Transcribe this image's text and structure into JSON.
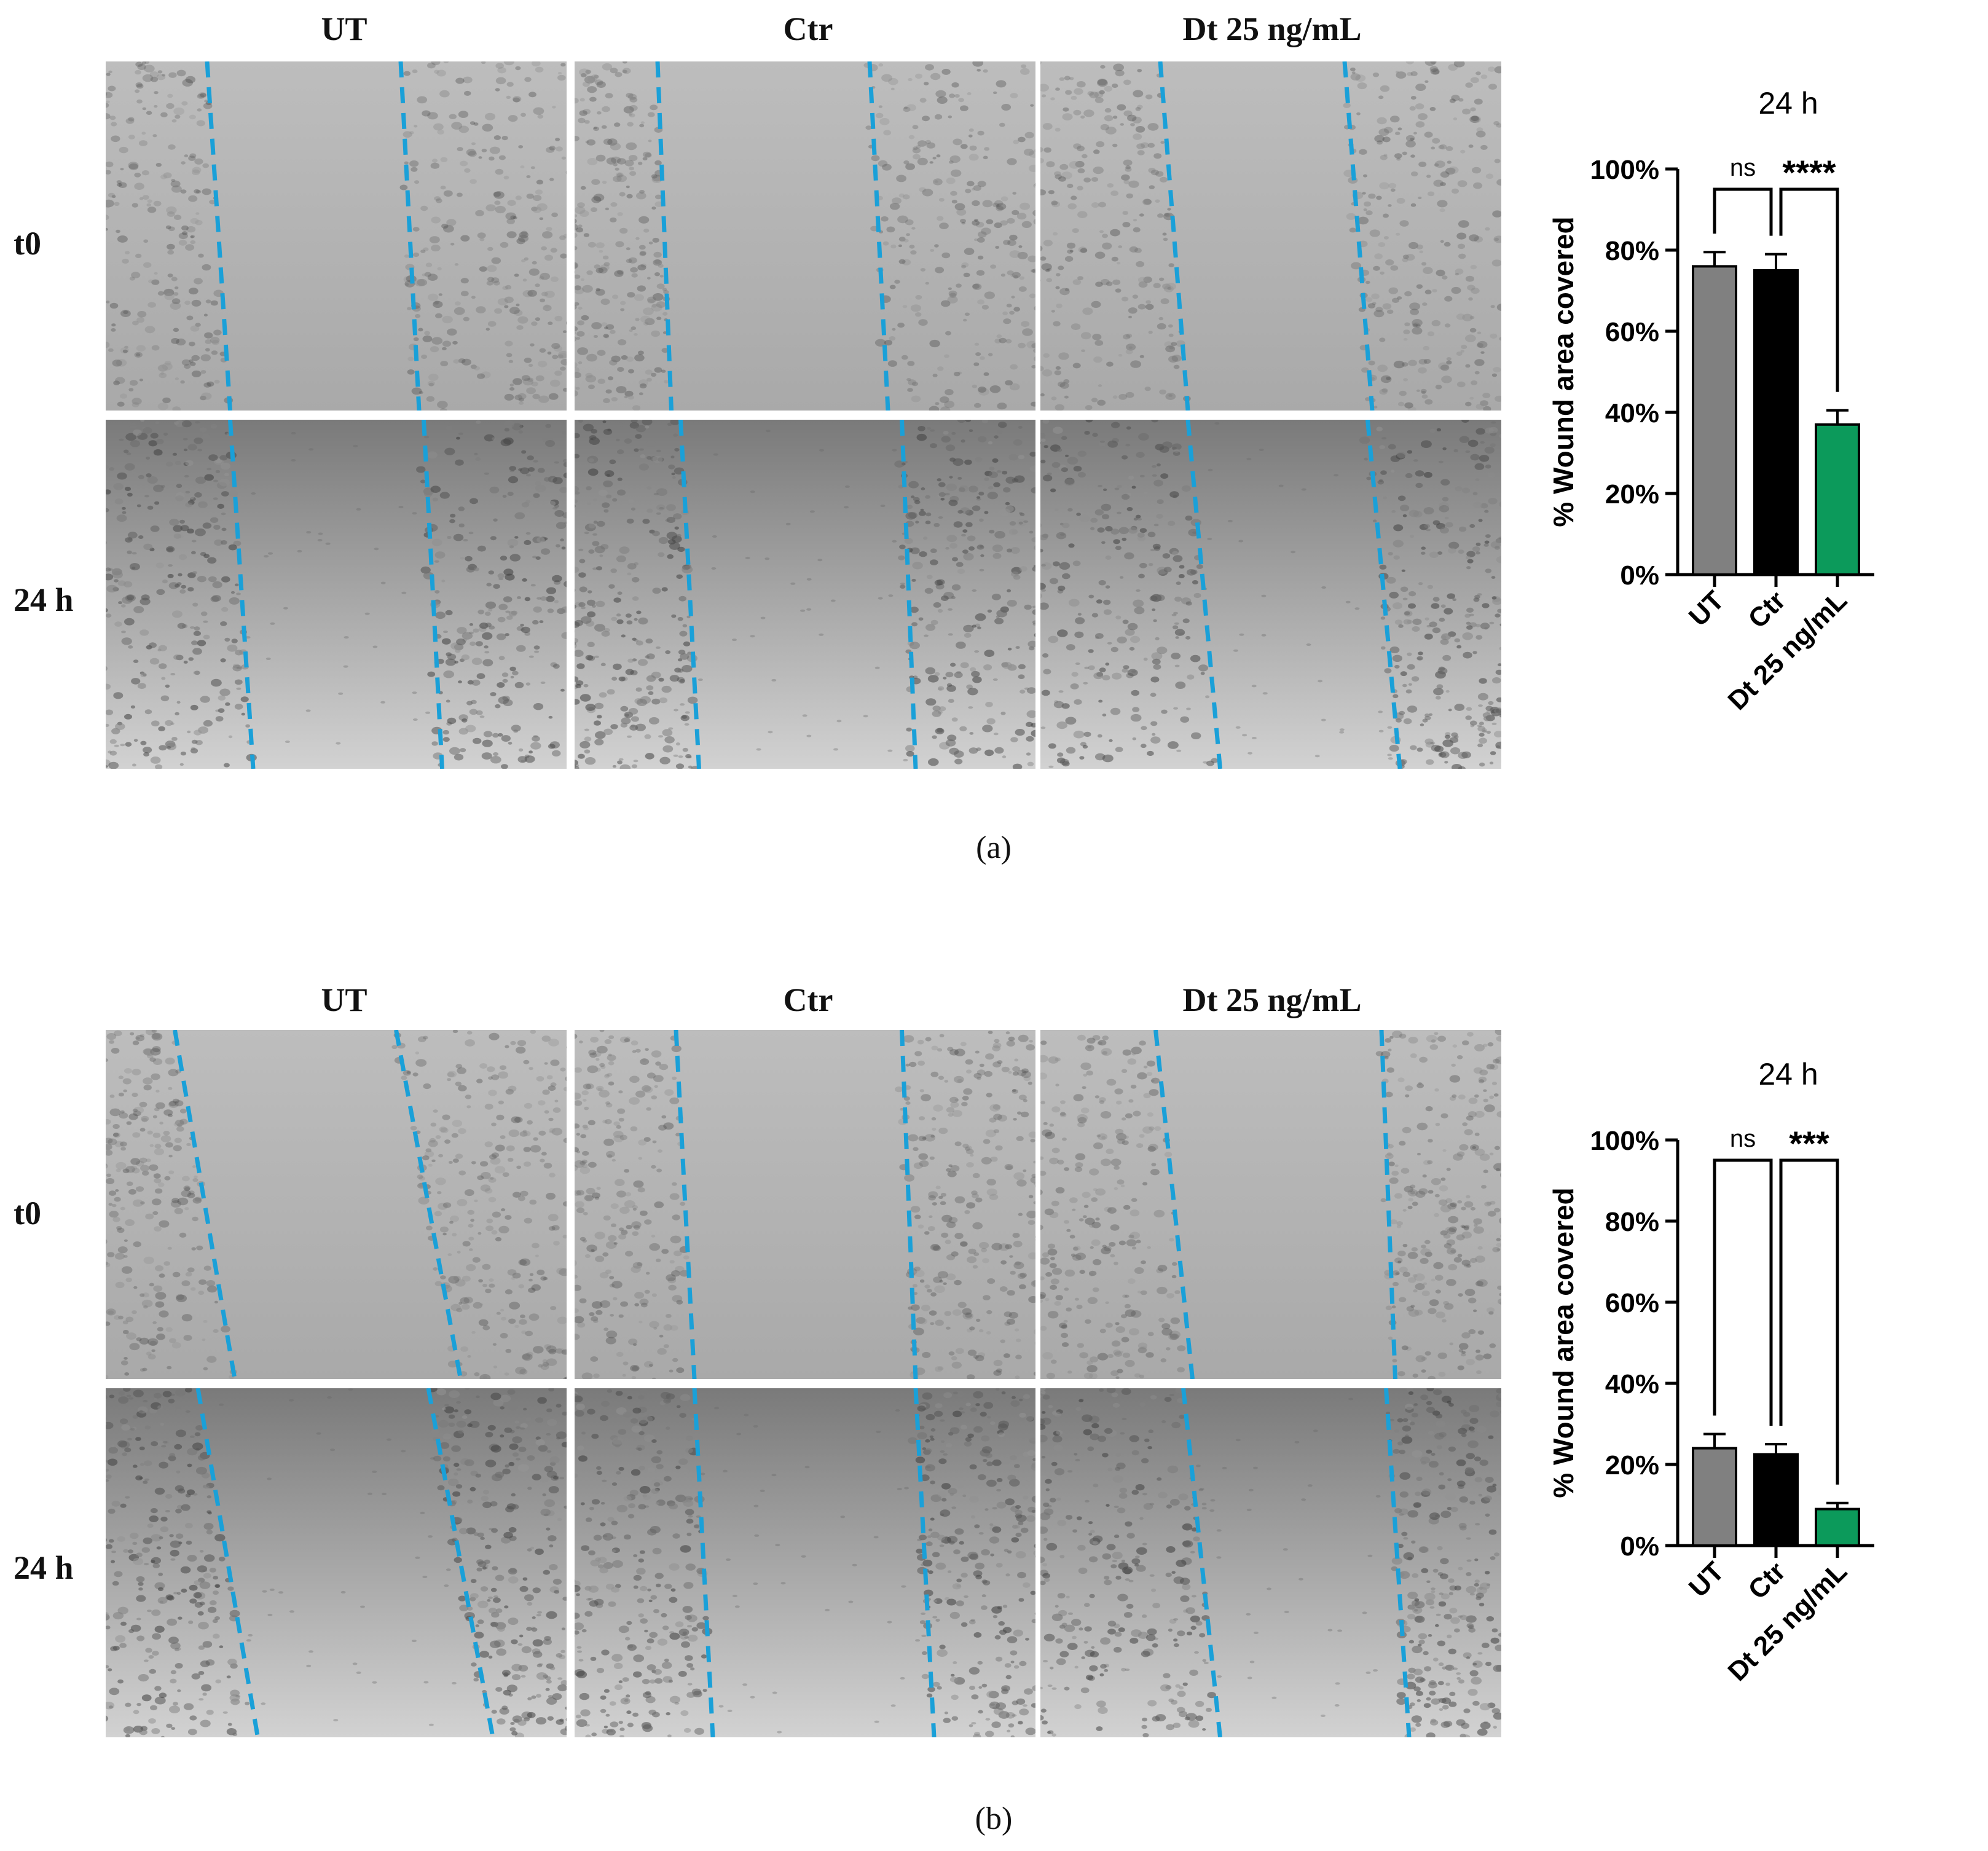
{
  "colors": {
    "wound_line": "#1aa0d8",
    "bar_ut": "#808080",
    "bar_ctr": "#000000",
    "bar_dt": "#0c9a5b"
  },
  "panels": [
    {
      "label": "(a)",
      "columns": [
        "UT",
        "Ctr",
        "Dt 25 ng/mL"
      ],
      "rows": [
        "t0",
        "24 h"
      ],
      "chart_title": "24 h"
    },
    {
      "label": "(b)",
      "columns": [
        "UT",
        "Ctr",
        "Dt 25 ng/mL"
      ],
      "rows": [
        "t0",
        "24 h"
      ],
      "chart_title": "24 h"
    }
  ],
  "chart_data": [
    {
      "type": "bar",
      "title": "24 h",
      "xlabel": "",
      "ylabel": "% Wound area covered",
      "categories": [
        "UT",
        "Ctr",
        "Dt 25 ng/mL"
      ],
      "values": [
        76,
        75,
        37
      ],
      "errors": [
        3.5,
        4,
        3.5
      ],
      "ylim": [
        0,
        100
      ],
      "yticks": [
        "0%",
        "20%",
        "40%",
        "60%",
        "80%",
        "100%"
      ],
      "significance": [
        {
          "from": "UT",
          "to": "Ctr",
          "label": "ns"
        },
        {
          "from": "Ctr",
          "to": "Dt 25 ng/mL",
          "label": "****"
        }
      ]
    },
    {
      "type": "bar",
      "title": "24 h",
      "xlabel": "",
      "ylabel": "% Wound area covered",
      "categories": [
        "UT",
        "Ctr",
        "Dt 25 ng/mL"
      ],
      "values": [
        24,
        22.5,
        9
      ],
      "errors": [
        3.5,
        2.5,
        1.5
      ],
      "ylim": [
        0,
        100
      ],
      "yticks": [
        "0%",
        "20%",
        "40%",
        "60%",
        "80%",
        "100%"
      ],
      "significance": [
        {
          "from": "UT",
          "to": "Ctr",
          "label": "ns"
        },
        {
          "from": "Ctr",
          "to": "Dt 25 ng/mL",
          "label": "***"
        }
      ]
    }
  ]
}
